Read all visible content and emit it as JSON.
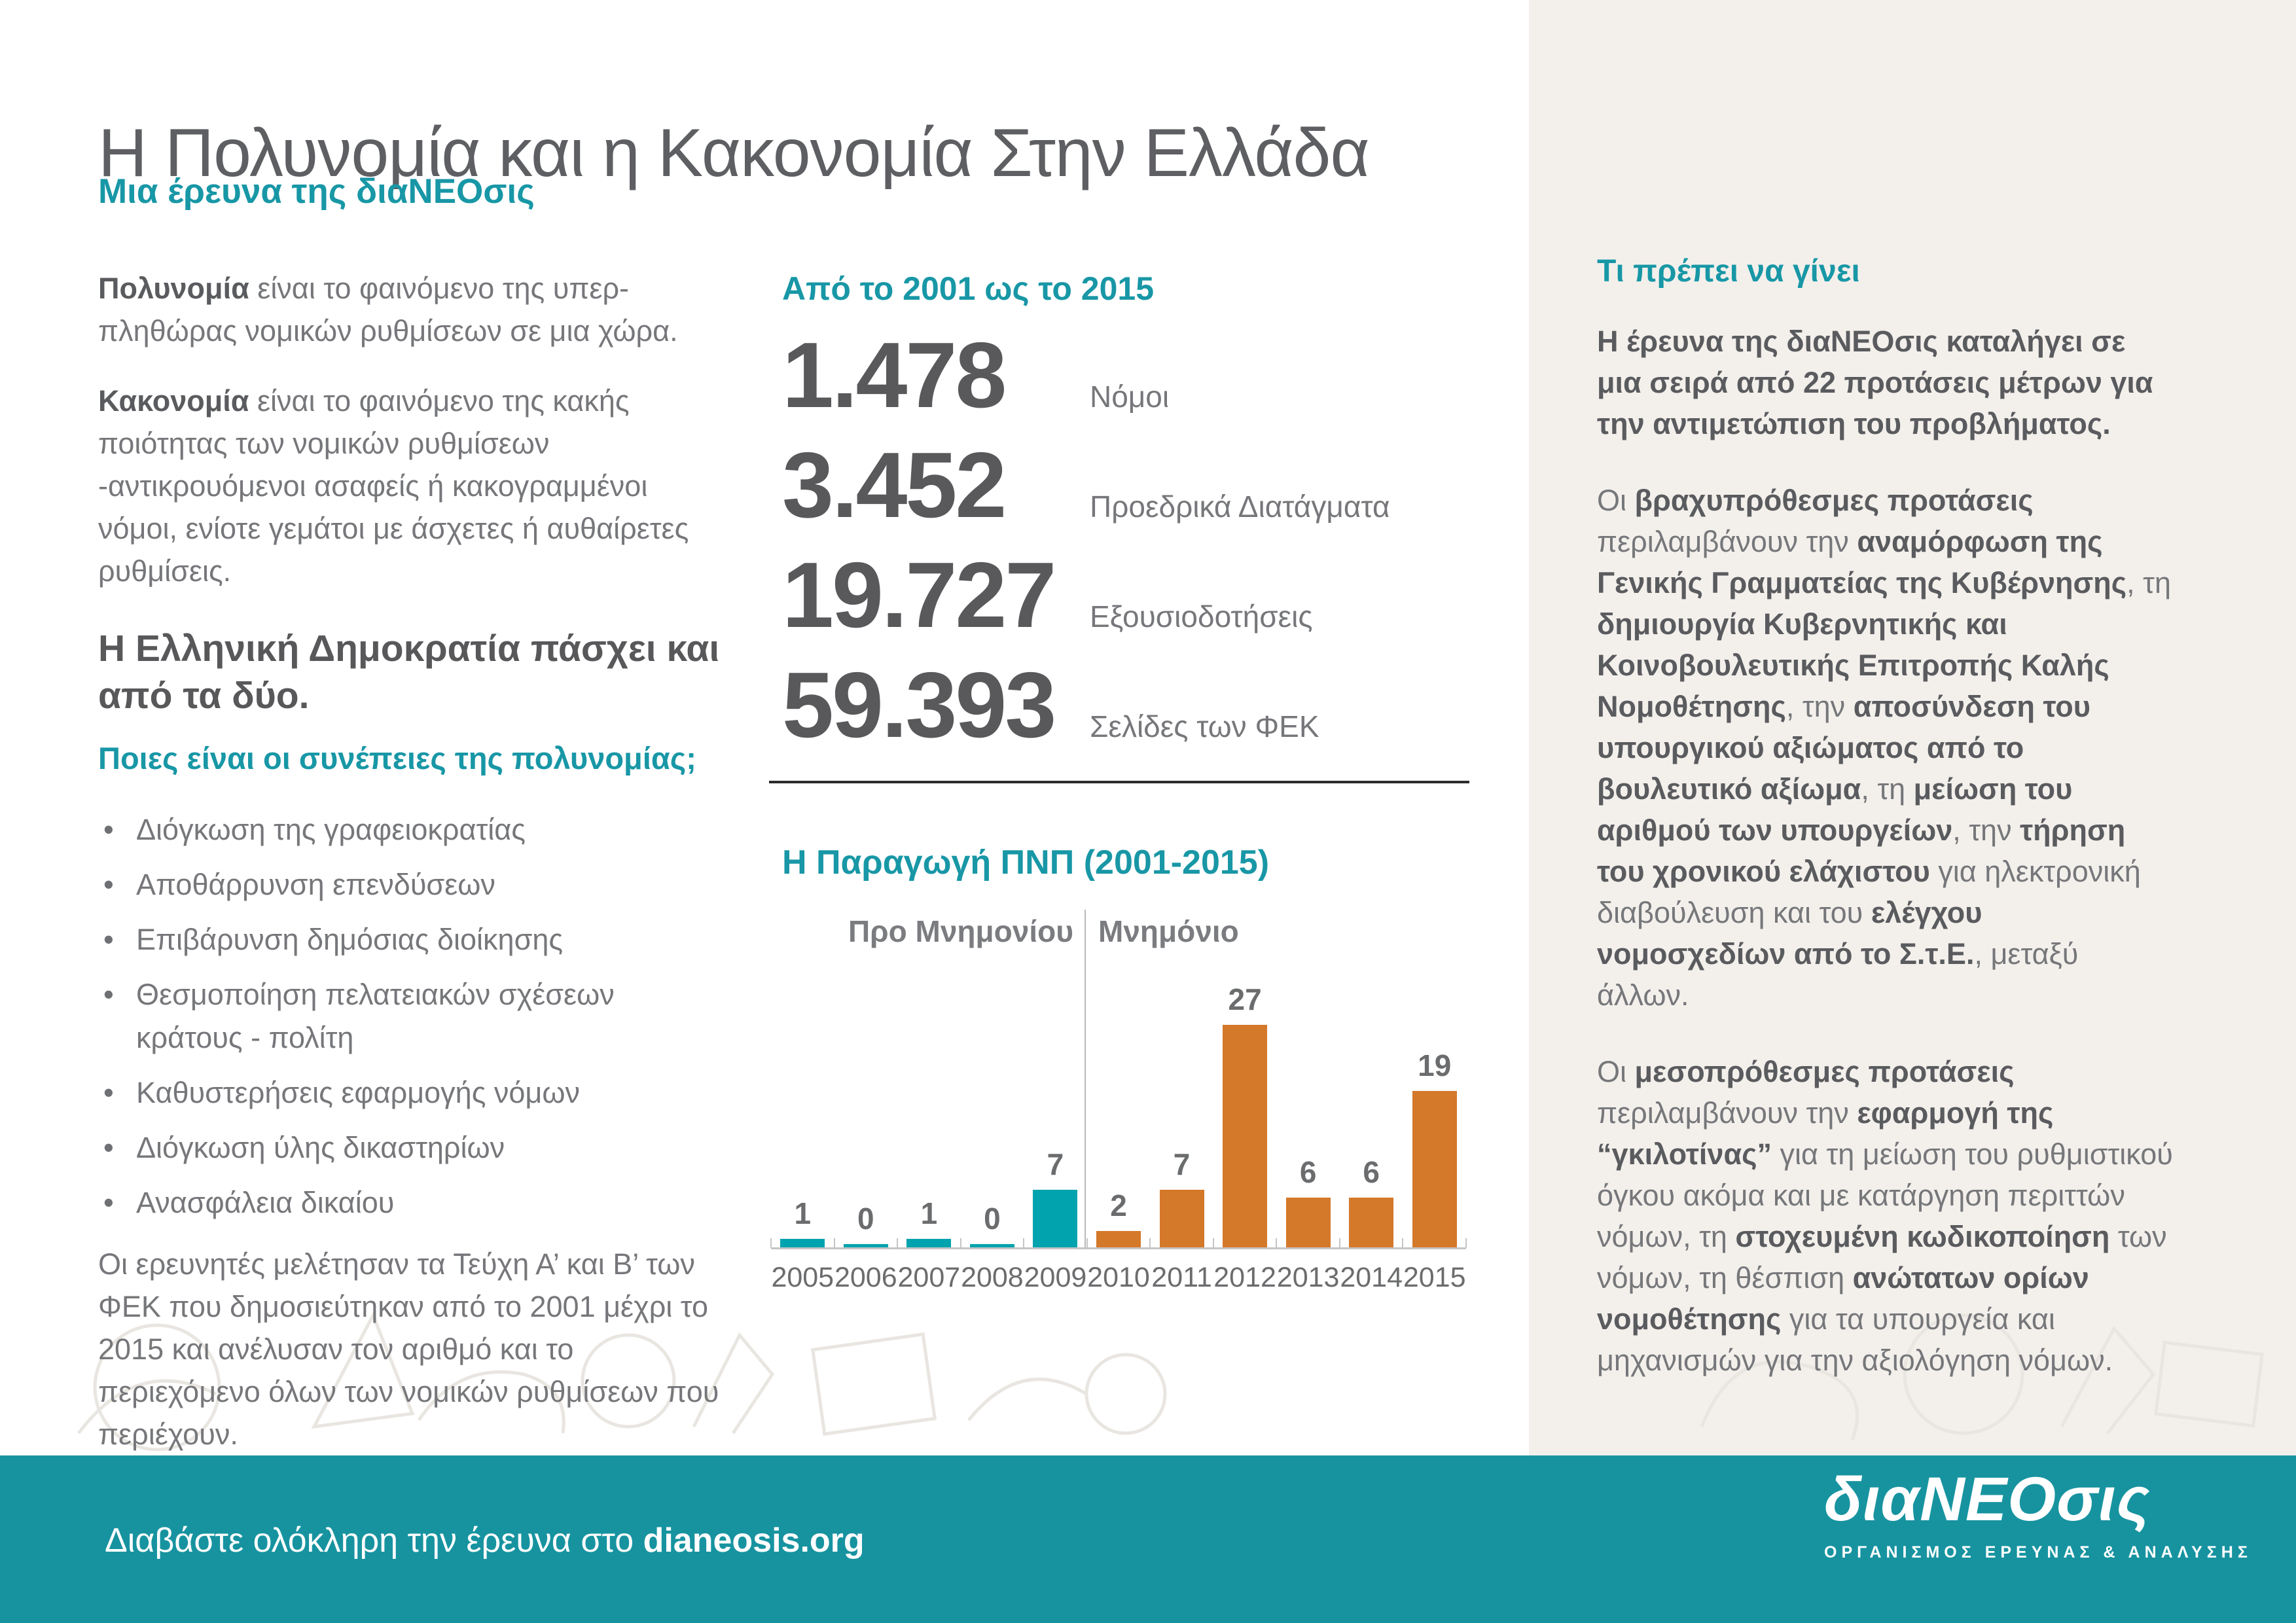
{
  "colors": {
    "accent_teal": "#1897a6",
    "footer_teal": "#1793a0",
    "chart_teal": "#00a3ae",
    "chart_orange": "#d4782a",
    "panel_gray": "#f3f0ec",
    "title_gray": "#5e5f62",
    "body_gray": "#76777a"
  },
  "header": {
    "title": "Η Πολυνομία και η Κακονομία Στην Ελλάδα",
    "subtitle": "Μια έρευνα της διαΝΕΟσις"
  },
  "left_column": {
    "intro": [
      {
        "segments": [
          {
            "t": "Πολυνομία",
            "b": true
          },
          {
            "t": " είναι το φαινόμενο της υπερ-πληθώρας νομικών ρυθμίσεων σε μια χώρα.",
            "b": false
          }
        ]
      },
      {
        "segments": [
          {
            "t": "Κακονομία",
            "b": true
          },
          {
            "t": " είναι το φαινόμενο της κακής ποιότητας των νομικών ρυθμίσεων -αντικρουόμενοι ασαφείς ή κακογραμμένοι νόμοι, ενίοτε γεμάτοι με άσχετες ή αυθαίρετες ρυθμίσεις.",
            "b": false
          }
        ]
      }
    ],
    "heading": "Η Ελληνική Δημοκρατία πάσχει και από τα δύο.",
    "subheading": "Ποιες είναι οι συνέπειες της πολυνομίας;",
    "bullet_glyph": "•",
    "bullets": [
      "Διόγκωση της γραφειοκρατίας",
      "Αποθάρρυνση επενδύσεων",
      "Επιβάρυνση δημόσιας διοίκησης",
      "Θεσμοποίηση πελατειακών σχέσεων κράτους - πολίτη",
      "Καθυστερήσεις εφαρμογής νόμων",
      "Διόγκωση ύλης δικαστηρίων",
      "Ανασφάλεια δικαίου"
    ],
    "outro": "Οι ερευνητές μελέτησαν τα Τεύχη Α’ και Β’ των ΦΕΚ που δημοσιεύτηκαν από το 2001 μέχρι το 2015 και ανέλυσαν τον αριθμό και το περιεχόμενο όλων των νομικών ρυθμίσεων που περιέχουν."
  },
  "stats": {
    "heading": "Από το 2001 ως το 2015",
    "items": [
      {
        "value": "1.478",
        "label": "Νόμοι"
      },
      {
        "value": "3.452",
        "label": "Προεδρικά Διατάγματα"
      },
      {
        "value": "19.727",
        "label": "Εξουσιοδοτήσεις"
      },
      {
        "value": "59.393",
        "label": "Σελίδες των ΦΕΚ"
      }
    ]
  },
  "chart_data": {
    "type": "bar",
    "title": "Η Παραγωγή ΠΝΠ (2001-2015)",
    "categories": [
      "2005",
      "2006",
      "2007",
      "2008",
      "2009",
      "2010",
      "2011",
      "2012",
      "2013",
      "2014",
      "2015"
    ],
    "values": [
      1,
      0,
      1,
      0,
      7,
      2,
      7,
      27,
      6,
      6,
      19
    ],
    "ylim": [
      0,
      27
    ],
    "grid": false,
    "data_labels": true,
    "groups": [
      {
        "label": "Προ Μνημονίου",
        "from": "2005",
        "to": "2009",
        "color": "#00a3ae"
      },
      {
        "label": "Μνημόνιο",
        "from": "2010",
        "to": "2015",
        "color": "#d4782a"
      }
    ]
  },
  "right_column": {
    "heading": "Τι πρέπει να γίνει",
    "lead": "Η έρευνα της διαΝΕΟσις καταλήγει σε μια σειρά από 22 προτάσεις μέτρων για την αντιμετώπιση του προβλήματος.",
    "paragraph_short_term": {
      "segments": [
        {
          "t": "Οι ",
          "b": false
        },
        {
          "t": "βραχυπρόθεσμες προτάσεις",
          "b": true
        },
        {
          "t": " περιλαμβάνουν την ",
          "b": false
        },
        {
          "t": "αναμόρφωση της Γενικής Γραμματείας της Κυβέρνησης",
          "b": true
        },
        {
          "t": ", τη ",
          "b": false
        },
        {
          "t": "δημιουργία Κυβερνητικής και Κοινοβουλευτικής Επιτροπής Καλής Νομοθέτησης",
          "b": true
        },
        {
          "t": ", την ",
          "b": false
        },
        {
          "t": "αποσύνδεση του υπουργικού αξιώματος από το βουλευτικό αξίωμα",
          "b": true
        },
        {
          "t": ", τη ",
          "b": false
        },
        {
          "t": "μείωση του αριθμού των υπουργείων",
          "b": true
        },
        {
          "t": ", την ",
          "b": false
        },
        {
          "t": "τήρηση του χρονικού ελάχιστου",
          "b": true
        },
        {
          "t": " για ηλεκτρονική διαβούλευση και του ",
          "b": false
        },
        {
          "t": "ελέγχου νομοσχεδίων από το Σ.τ.Ε.",
          "b": true
        },
        {
          "t": ", μεταξύ άλλων.",
          "b": false
        }
      ]
    },
    "paragraph_mid_term": {
      "segments": [
        {
          "t": "Οι ",
          "b": false
        },
        {
          "t": "μεσοπρόθεσμες προτάσεις",
          "b": true
        },
        {
          "t": " περιλαμβάνουν  την ",
          "b": false
        },
        {
          "t": "εφαρμογή της “γκιλοτίνας”",
          "b": true
        },
        {
          "t": " για τη μείωση του ρυθμιστικού όγκου ακόμα και με κατάργηση περιττών νόμων, τη ",
          "b": false
        },
        {
          "t": "στοχευμένη κωδικοποίηση",
          "b": true
        },
        {
          "t": " των νόμων, τη θέσπιση ",
          "b": false
        },
        {
          "t": "ανώτατων ορίων νομοθέτησης",
          "b": true
        },
        {
          "t": " για τα υπουργεία και μηχανισμών για την αξιολόγηση νόμων.",
          "b": false
        }
      ]
    }
  },
  "footer": {
    "text_regular": "Διαβάστε ολόκληρη την έρευνα στο ",
    "link": "dianeosis.org",
    "logo": "διαΝΕΟσις",
    "logo_tagline": "ΟΡΓΑΝΙΣΜΟΣ ΕΡΕΥΝΑΣ & ΑΝΑΛΥΣΗΣ"
  }
}
